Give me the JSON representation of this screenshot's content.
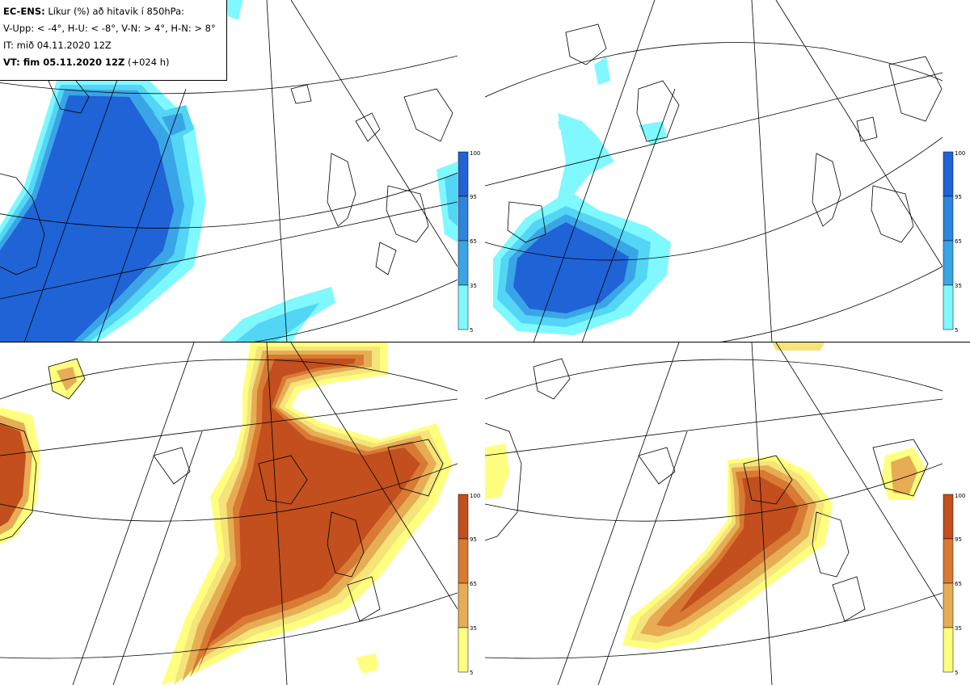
{
  "header": {
    "model_label": "EC-ENS:",
    "title_text": "Líkur (%) að hitavik í 850hPa:",
    "categories_line": "V-Upp: < -4°, H-U: < -8°, V-N: > 4°, H-N: > 8°",
    "initial_time": "IT: mið 04.11.2020 12Z",
    "valid_label": "VT: fim 05.11.2020 12Z",
    "lead_time": "(+024 h)"
  },
  "colorbar": {
    "ticks": [
      "100",
      "95",
      "65",
      "35",
      "5"
    ]
  },
  "colors": {
    "cold_scale": [
      "#7ff8ff",
      "#53d5f5",
      "#3aa5e6",
      "#2f84dd",
      "#1f63d6"
    ],
    "warm_scale": [
      "#ffff7f",
      "#f5e47a",
      "#e6ad55",
      "#d87a33",
      "#c24f1d"
    ],
    "land_outline": "#000000",
    "graticule": "#000000"
  },
  "panels": [
    {
      "id": "cold-4",
      "scheme": "cold"
    },
    {
      "id": "cold-8",
      "scheme": "cold"
    },
    {
      "id": "warm-4",
      "scheme": "warm"
    },
    {
      "id": "warm-8",
      "scheme": "warm"
    }
  ]
}
